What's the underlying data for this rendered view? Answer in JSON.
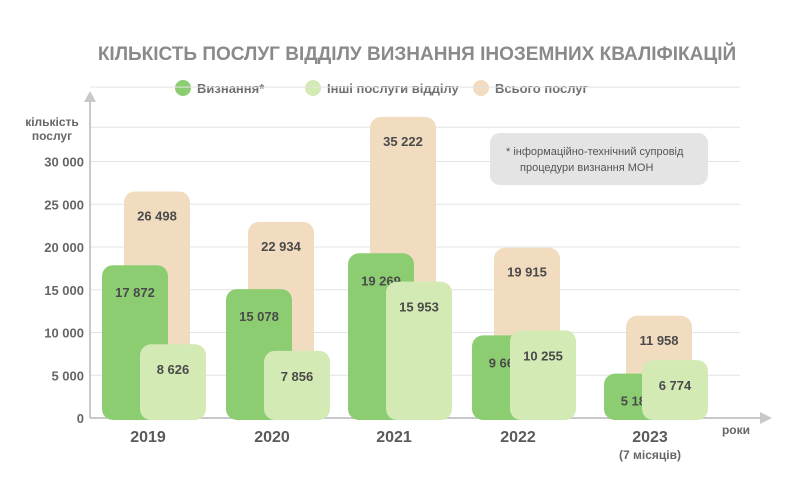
{
  "chart_data": {
    "type": "bar",
    "title": "КІЛЬКІСТЬ ПОСЛУГ ВІДДІЛУ ВИЗНАННЯ ІНОЗЕМНИХ КВАЛІФІКАЦІЙ",
    "ylabel_line1": "кількість",
    "ylabel_line2": "послуг",
    "xlabel": "роки",
    "ylim": [
      0,
      35000
    ],
    "yticks": [
      "0",
      "5 000",
      "10 000",
      "15 000",
      "20 000",
      "25 000",
      "30 000"
    ],
    "ytick_values": [
      0,
      5000,
      10000,
      15000,
      20000,
      25000,
      30000
    ],
    "grid": true,
    "legend_position": "top",
    "categories": [
      "2019",
      "2020",
      "2021",
      "2022",
      "2023"
    ],
    "category_notes": [
      "",
      "",
      "",
      "",
      "(7 місяців)"
    ],
    "series": [
      {
        "name": "Всього послуг",
        "color": "#f1dcc0",
        "values": [
          26498,
          22934,
          35222,
          19915,
          11958
        ],
        "labels": [
          "26 498",
          "22 934",
          "35 222",
          "19 915",
          "11 958"
        ]
      },
      {
        "name": "Визнання*",
        "color": "#8dcd72",
        "values": [
          17872,
          15078,
          19269,
          9660,
          5184
        ],
        "labels": [
          "17 872",
          "15 078",
          "19 269",
          "9 660",
          "5 184"
        ]
      },
      {
        "name": "Інші послуги відділу",
        "color": "#d4eab5",
        "values": [
          8626,
          7856,
          15953,
          10255,
          6774
        ],
        "labels": [
          "8 626",
          "7 856",
          "15 953",
          "10 255",
          "6 774"
        ]
      }
    ],
    "legend_order": [
      "Визнання*",
      "Інші послуги відділу",
      "Всього послуг"
    ],
    "legend_colors": [
      "#8dcd72",
      "#d4eab5",
      "#f1dcc0"
    ],
    "note_line1": "*  інформаційно-технічний супровід",
    "note_line2": "процедури визнання МОН",
    "note_bg": "#e4e4e4",
    "axis_color": "#c8c8c8"
  }
}
